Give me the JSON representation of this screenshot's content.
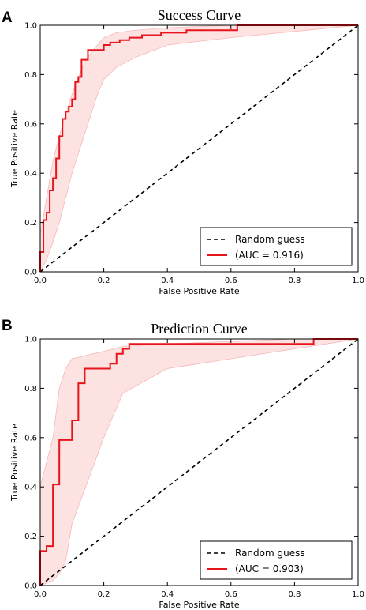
{
  "chart_data": [
    {
      "panel": "A",
      "type": "line",
      "title": "Success Curve",
      "xlabel": "False Positive Rate",
      "ylabel": "True Positive Rate",
      "xlim": [
        0,
        1
      ],
      "ylim": [
        0,
        1
      ],
      "xticks": [
        "0.0",
        "0.2",
        "0.4",
        "0.6",
        "0.8",
        "1.0"
      ],
      "yticks": [
        "0.0",
        "0.2",
        "0.4",
        "0.6",
        "0.8",
        "1.0"
      ],
      "grid": false,
      "legend_position": "bottom-right",
      "colors": {
        "roc": "#e8141c",
        "band": "#fde2e2",
        "baseline": "#000000"
      },
      "series": [
        {
          "name": "(AUC = 0.916)",
          "style": "solid",
          "x": [
            0,
            0,
            0.01,
            0.01,
            0.02,
            0.02,
            0.03,
            0.03,
            0.04,
            0.04,
            0.05,
            0.05,
            0.06,
            0.06,
            0.07,
            0.07,
            0.08,
            0.08,
            0.09,
            0.09,
            0.1,
            0.1,
            0.11,
            0.11,
            0.12,
            0.12,
            0.13,
            0.13,
            0.15,
            0.15,
            0.17,
            0.17,
            0.2,
            0.2,
            0.22,
            0.22,
            0.25,
            0.25,
            0.28,
            0.28,
            0.32,
            0.32,
            0.38,
            0.38,
            0.46,
            0.46,
            0.62,
            0.62,
            1.0
          ],
          "y": [
            0,
            0.08,
            0.08,
            0.21,
            0.21,
            0.24,
            0.24,
            0.33,
            0.33,
            0.38,
            0.38,
            0.46,
            0.46,
            0.55,
            0.55,
            0.62,
            0.62,
            0.65,
            0.65,
            0.67,
            0.67,
            0.7,
            0.7,
            0.77,
            0.77,
            0.79,
            0.79,
            0.86,
            0.86,
            0.9,
            0.9,
            0.9,
            0.9,
            0.92,
            0.92,
            0.93,
            0.93,
            0.94,
            0.94,
            0.95,
            0.95,
            0.96,
            0.96,
            0.97,
            0.97,
            0.98,
            0.98,
            1.0,
            1.0
          ],
          "band_upper": [
            0.15,
            0.3,
            0.45,
            0.55,
            0.64,
            0.72,
            0.79,
            0.85,
            0.89,
            0.92,
            0.95,
            0.97,
            0.98,
            0.99,
            1.0,
            1.0
          ],
          "band_lower": [
            0,
            0.05,
            0.12,
            0.2,
            0.3,
            0.4,
            0.48,
            0.56,
            0.64,
            0.72,
            0.78,
            0.83,
            0.87,
            0.92,
            0.95,
            1.0
          ],
          "band_x": [
            0,
            0.02,
            0.04,
            0.06,
            0.08,
            0.1,
            0.12,
            0.14,
            0.16,
            0.18,
            0.2,
            0.24,
            0.3,
            0.4,
            0.6,
            1.0
          ]
        },
        {
          "name": "Random guess",
          "style": "dashed",
          "x": [
            0,
            1
          ],
          "y": [
            0,
            1
          ]
        }
      ]
    },
    {
      "panel": "B",
      "type": "line",
      "title": "Prediction Curve",
      "xlabel": "False Positive Rate",
      "ylabel": "True Positive Rate",
      "xlim": [
        0,
        1
      ],
      "ylim": [
        0,
        1
      ],
      "xticks": [
        "0.0",
        "0.2",
        "0.4",
        "0.6",
        "0.8",
        "1.0"
      ],
      "yticks": [
        "0.0",
        "0.2",
        "0.4",
        "0.6",
        "0.8",
        "1.0"
      ],
      "grid": false,
      "legend_position": "bottom-right",
      "colors": {
        "roc": "#e8141c",
        "band": "#fde2e2",
        "baseline": "#000000"
      },
      "series": [
        {
          "name": "(AUC = 0.903)",
          "style": "solid",
          "x": [
            0,
            0,
            0.02,
            0.02,
            0.04,
            0.04,
            0.06,
            0.06,
            0.1,
            0.1,
            0.12,
            0.12,
            0.14,
            0.14,
            0.22,
            0.22,
            0.24,
            0.24,
            0.26,
            0.26,
            0.28,
            0.28,
            0.3,
            0.3,
            0.86,
            0.86,
            1.0
          ],
          "y": [
            0,
            0.14,
            0.14,
            0.16,
            0.16,
            0.41,
            0.41,
            0.59,
            0.59,
            0.67,
            0.67,
            0.82,
            0.82,
            0.88,
            0.88,
            0.9,
            0.9,
            0.94,
            0.94,
            0.96,
            0.96,
            0.98,
            0.98,
            0.98,
            0.98,
            1.0,
            1.0
          ],
          "band_upper": [
            0.4,
            0.6,
            0.8,
            0.88,
            0.92,
            0.95,
            0.97,
            0.98,
            1.0,
            1.0
          ],
          "band_lower": [
            0,
            0.02,
            0.05,
            0.1,
            0.25,
            0.6,
            0.78,
            0.88,
            0.96,
            1.0
          ],
          "band_x": [
            0,
            0.04,
            0.06,
            0.08,
            0.1,
            0.2,
            0.26,
            0.4,
            0.8,
            1.0
          ]
        },
        {
          "name": "Random guess",
          "style": "dashed",
          "x": [
            0,
            1
          ],
          "y": [
            0,
            1
          ]
        }
      ]
    }
  ]
}
